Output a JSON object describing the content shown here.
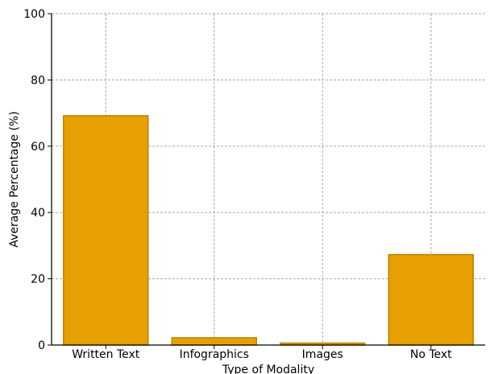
{
  "chart_data": {
    "type": "bar",
    "title": "",
    "xlabel": "Type of Modality",
    "ylabel": "Average Percentage (%)",
    "categories": [
      "Written Text",
      "Infographics",
      "Images",
      "No Text"
    ],
    "values": [
      69.2,
      2.2,
      0.6,
      27.3
    ],
    "ylim": [
      0,
      100
    ],
    "yticks": [
      "0",
      "20",
      "40",
      "60",
      "80",
      "100"
    ],
    "grid": true,
    "legend": "none"
  },
  "colors": {
    "bar_fill": "#E6A000",
    "bar_edge": "#B98000",
    "grid": "#A8A8A8",
    "axis": "#000000"
  }
}
